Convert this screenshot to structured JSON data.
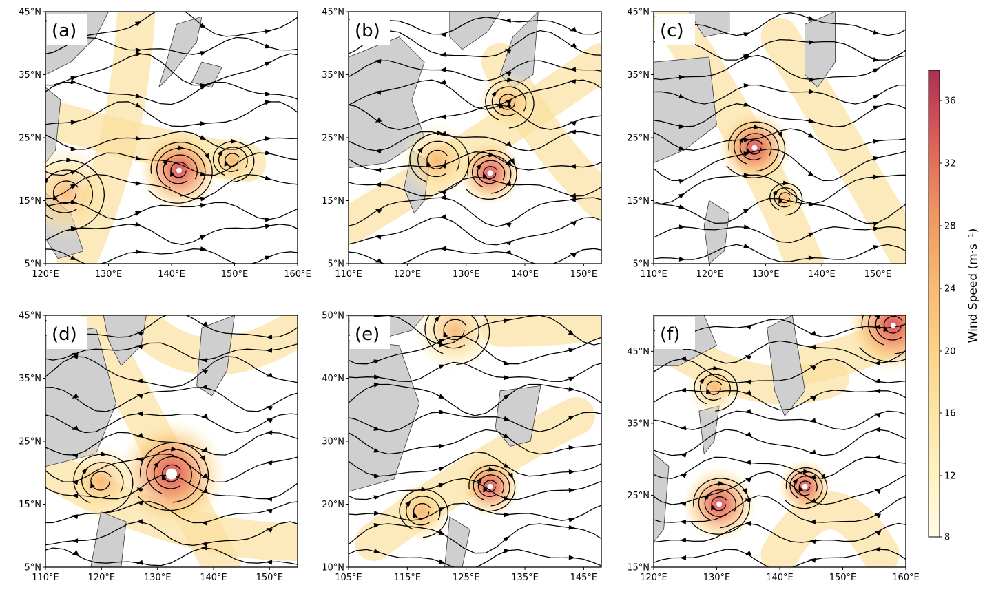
{
  "colorbar": {
    "label": "Wind Speed (m·s⁻¹)",
    "ticks": [
      "8",
      "12",
      "16",
      "20",
      "24",
      "28",
      "32",
      "36"
    ],
    "colors": [
      "#fffbe6",
      "#fff1bf",
      "#fde3a0",
      "#fbcf83",
      "#f8b56d",
      "#ef9461",
      "#e06a5a",
      "#c94757",
      "#a8324f"
    ]
  },
  "panels": [
    {
      "label": "(a)",
      "lat_ticks": [
        "5°N",
        "15°N",
        "25°N",
        "35°N",
        "45°N"
      ],
      "lon_ticks": [
        "120°E",
        "130°E",
        "140°E",
        "150°E",
        "160°E"
      ]
    },
    {
      "label": "(b)",
      "lat_ticks": [
        "5°N",
        "15°N",
        "25°N",
        "35°N",
        "45°N"
      ],
      "lon_ticks": [
        "110°E",
        "120°E",
        "130°E",
        "140°E",
        "150°E"
      ]
    },
    {
      "label": "(c)",
      "lat_ticks": [
        "5°N",
        "15°N",
        "25°N",
        "35°N",
        "45°N"
      ],
      "lon_ticks": [
        "110°E",
        "120°E",
        "130°E",
        "140°E",
        "150°E"
      ]
    },
    {
      "label": "(d)",
      "lat_ticks": [
        "5°N",
        "15°N",
        "25°N",
        "35°N",
        "45°N"
      ],
      "lon_ticks": [
        "110°E",
        "120°E",
        "130°E",
        "140°E",
        "150°E"
      ]
    },
    {
      "label": "(e)",
      "lat_ticks": [
        "10°N",
        "20°N",
        "30°N",
        "40°N",
        "50°N"
      ],
      "lon_ticks": [
        "105°E",
        "115°E",
        "125°E",
        "135°E",
        "145°E"
      ]
    },
    {
      "label": "(f)",
      "lat_ticks": [
        "15°N",
        "25°N",
        "35°N",
        "45°N"
      ],
      "lon_ticks": [
        "120°E",
        "130°E",
        "140°E",
        "150°E",
        "160°E"
      ]
    }
  ]
}
